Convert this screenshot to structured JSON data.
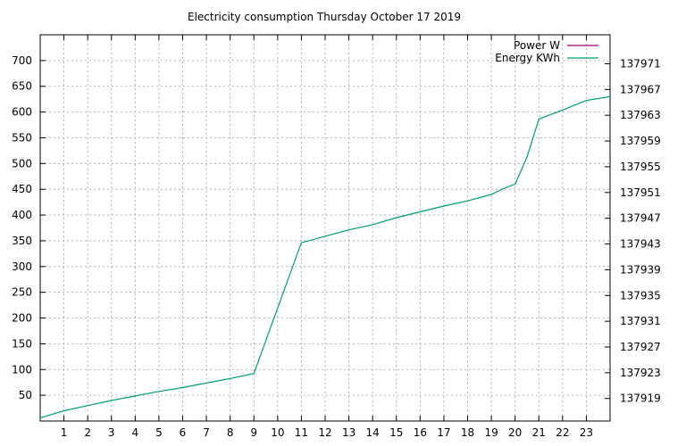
{
  "chart_data": {
    "type": "line",
    "title": "Electricity consumption Thursday October 17 2019",
    "x_ticks": [
      "1",
      "2",
      "3",
      "4",
      "5",
      "6",
      "7",
      "8",
      "9",
      "10",
      "11",
      "12",
      "13",
      "14",
      "15",
      "16",
      "17",
      "18",
      "19",
      "20",
      "21",
      "22",
      "23"
    ],
    "xlim": [
      0,
      24
    ],
    "y_left_ticks": [
      "50",
      "100",
      "150",
      "200",
      "250",
      "300",
      "350",
      "400",
      "450",
      "500",
      "550",
      "600",
      "650",
      "700"
    ],
    "y_left_lim": [
      0,
      750
    ],
    "y_right_ticks": [
      "137919",
      "137923",
      "137927",
      "137931",
      "137935",
      "137939",
      "137943",
      "137947",
      "137951",
      "137955",
      "137959",
      "137963",
      "137967",
      "137971"
    ],
    "y_right_lim": [
      137915.5,
      137975.5
    ],
    "grid": true,
    "legend_position": "top-right",
    "series": [
      {
        "name": "Power W",
        "axis": "left",
        "color": "#a0006a",
        "x": [],
        "y": []
      },
      {
        "name": "Energy KWh",
        "axis": "right",
        "color": "#009e73",
        "x": [
          0,
          1,
          2,
          3,
          4,
          5,
          6,
          7,
          8,
          9,
          11,
          12,
          13,
          14,
          15,
          16,
          17,
          18,
          19,
          19.5,
          20,
          20.5,
          21,
          22,
          23,
          24
        ],
        "y": [
          137916.0,
          137917.1,
          137917.9,
          137918.7,
          137919.4,
          137920.1,
          137920.7,
          137921.4,
          137922.1,
          137922.9,
          137943.2,
          137944.2,
          137945.2,
          137946.0,
          137947.1,
          137948.0,
          137948.9,
          137949.7,
          137950.7,
          137951.6,
          137952.3,
          137956.5,
          137962.4,
          137963.8,
          137965.3,
          137965.9
        ]
      }
    ]
  }
}
